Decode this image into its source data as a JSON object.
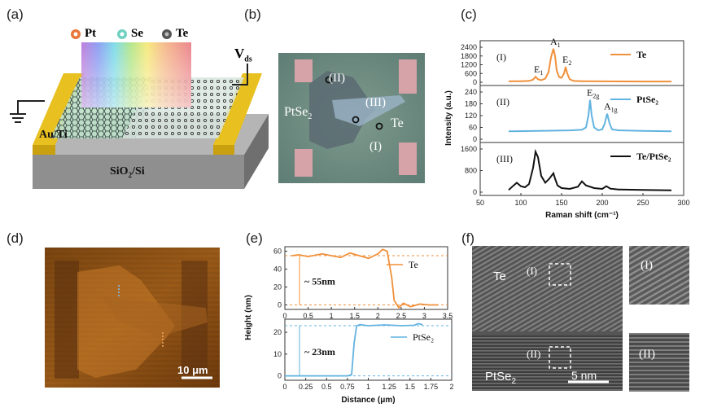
{
  "panels": {
    "a": {
      "label": "(a)",
      "legend": [
        "Pt",
        "Se",
        "Te"
      ],
      "vds": "V",
      "vds_sub": "ds",
      "electrode": "Au/Ti",
      "substrate_main": "SiO",
      "substrate_sub": "2",
      "substrate_tail": "/Si"
    },
    "b": {
      "label": "(b)",
      "mat_left": "PtSe",
      "mat_left_sub": "2",
      "mat_right": "Te",
      "pt1": "(I)",
      "pt2": "(II)",
      "pt3": "(III)"
    },
    "c": {
      "label": "(c)",
      "ylabel": "Intensity (a.u.)",
      "xlabel": "Raman shift  (cm⁻¹)"
    },
    "d": {
      "label": "(d)",
      "scalebar": "10 μm"
    },
    "e": {
      "label": "(e)",
      "ylabel": "Height (nm)",
      "xlabel": "Distance (μm)",
      "ann_top": "~ 55nm",
      "ann_bottom": "~ 23nm"
    },
    "f": {
      "label": "(f)",
      "te": "Te",
      "ptse": "PtSe",
      "ptse_sub": "2",
      "box1": "(I)",
      "box2": "(II)",
      "scalebar": "5 nm",
      "inset1": "(I)",
      "inset2": "(II)"
    }
  },
  "chart_data": [
    {
      "type": "line",
      "panel": "c",
      "xlabel": "Raman shift  (cm⁻¹)",
      "ylabel": "Intensity (a.u.)",
      "xlim": [
        50,
        300
      ],
      "xticks": [
        50,
        100,
        150,
        200,
        250,
        300
      ],
      "subplots": [
        {
          "tag": "(I)",
          "name": "Te",
          "color": "#f0903a",
          "ylim": [
            0,
            2400
          ],
          "yticks": [
            0,
            600,
            1200,
            1800,
            2400
          ],
          "peaks": [
            {
              "label": "E",
              "sub": "1",
              "x": 120,
              "y": 380
            },
            {
              "label": "A",
              "sub": "1",
              "x": 140,
              "y": 2300
            },
            {
              "label": "E",
              "sub": "2",
              "x": 155,
              "y": 1050
            }
          ],
          "x": [
            85,
            100,
            110,
            115,
            118,
            121,
            125,
            130,
            134,
            137,
            140,
            142,
            144,
            147,
            150,
            153,
            155,
            157,
            160,
            165,
            175,
            200,
            250,
            285
          ],
          "y": [
            60,
            70,
            90,
            180,
            380,
            200,
            140,
            250,
            700,
            1700,
            2300,
            1800,
            800,
            350,
            300,
            600,
            1050,
            600,
            200,
            90,
            70,
            60,
            50,
            50
          ]
        },
        {
          "tag": "(II)",
          "name": "PtSe₂",
          "color": "#62b3e0",
          "ylim": [
            0,
            240
          ],
          "yticks": [
            0,
            60,
            120,
            180,
            240
          ],
          "peaks": [
            {
              "label": "E",
              "sub": "2g",
              "x": 185,
              "y": 200
            },
            {
              "label": "A",
              "sub": "1g",
              "x": 206,
              "y": 130
            }
          ],
          "x": [
            85,
            120,
            160,
            175,
            180,
            183,
            185,
            187,
            190,
            195,
            200,
            203,
            206,
            209,
            212,
            220,
            250,
            285
          ],
          "y": [
            40,
            42,
            45,
            48,
            60,
            120,
            200,
            120,
            60,
            45,
            50,
            80,
            130,
            80,
            50,
            45,
            42,
            40
          ]
        },
        {
          "tag": "(III)",
          "name": "Te/PtSe₂",
          "color": "#111111",
          "ylim": [
            0,
            1600
          ],
          "yticks": [
            0,
            800,
            1600
          ],
          "x": [
            85,
            90,
            95,
            100,
            105,
            110,
            115,
            118,
            121,
            125,
            130,
            135,
            140,
            142,
            145,
            150,
            160,
            170,
            175,
            180,
            190,
            200,
            205,
            210,
            220,
            250,
            285
          ],
          "y": [
            80,
            220,
            350,
            220,
            180,
            300,
            900,
            1500,
            1300,
            600,
            350,
            500,
            700,
            500,
            250,
            150,
            120,
            200,
            400,
            250,
            150,
            120,
            220,
            130,
            100,
            80,
            70
          ]
        }
      ]
    },
    {
      "type": "line",
      "panel": "e",
      "xlabel": "Distance (μm)",
      "ylabel": "Height (nm)",
      "subplots": [
        {
          "name": "Te",
          "color": "#f0903a",
          "xlim": [
            0,
            3.5
          ],
          "ylim": [
            -5,
            65
          ],
          "xticks": [
            0,
            0.5,
            1,
            1.5,
            2,
            2.5,
            3,
            3.5
          ],
          "yticks": [
            0,
            20,
            40,
            60
          ],
          "ref_lines": [
            0,
            55
          ],
          "x": [
            0.15,
            0.3,
            0.5,
            0.8,
            1.0,
            1.2,
            1.4,
            1.6,
            1.8,
            2.0,
            2.1,
            2.2,
            2.3,
            2.35,
            2.45,
            2.55,
            2.7,
            2.9,
            3.1,
            3.3
          ],
          "y": [
            55,
            56,
            54,
            57,
            55,
            53,
            58,
            55,
            52,
            57,
            62,
            60,
            30,
            5,
            -3,
            2,
            -2,
            1,
            0,
            0
          ]
        },
        {
          "name": "PtSe₂",
          "color": "#62b3e0",
          "xlim": [
            0,
            2.0
          ],
          "ylim": [
            -2,
            26
          ],
          "xticks": [
            0,
            0.25,
            0.5,
            0.75,
            1.0,
            1.25,
            1.5,
            1.75,
            2.0
          ],
          "yticks": [
            0,
            10,
            20
          ],
          "ref_lines": [
            0,
            23
          ],
          "x": [
            0,
            0.2,
            0.4,
            0.6,
            0.75,
            0.8,
            0.83,
            0.86,
            0.9,
            1.0,
            1.2,
            1.4,
            1.55,
            1.6,
            1.65
          ],
          "y": [
            0,
            0,
            0,
            0,
            0,
            0.5,
            15,
            23,
            23.5,
            23,
            23.4,
            23,
            23.2,
            24,
            23.5
          ]
        }
      ]
    }
  ]
}
